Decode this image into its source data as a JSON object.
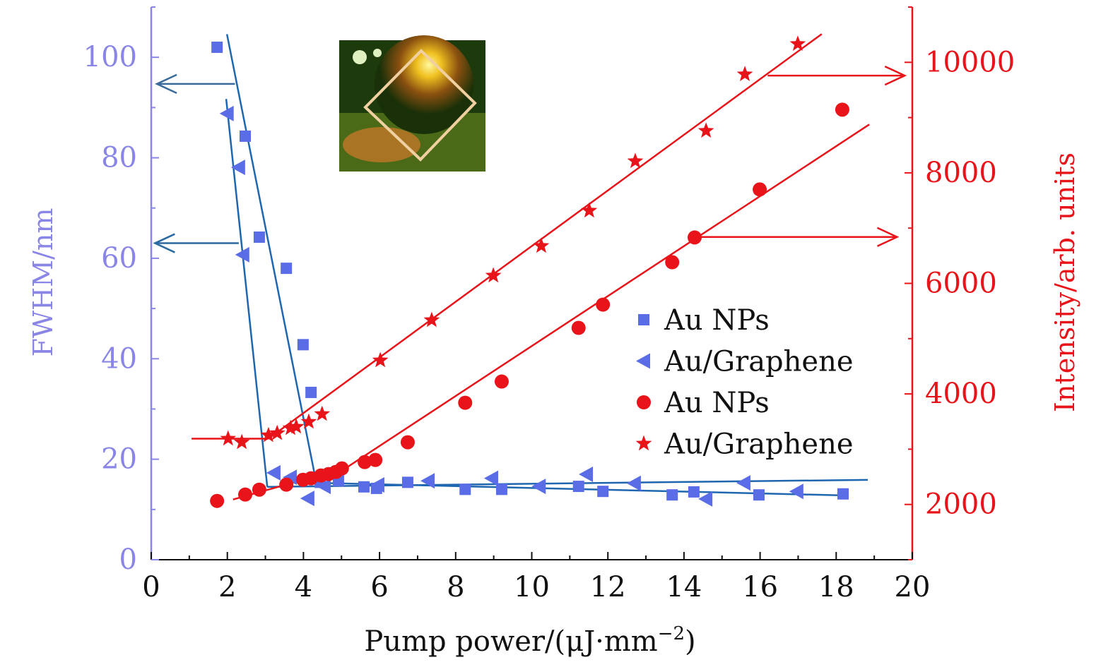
{
  "chart_data": {
    "type": "scatter",
    "xlabel": "Pump power/(μJ·mm",
    "xlabel_sup": "−2",
    "xlabel_close": ")",
    "ylabel_left": "FWHM/nm",
    "ylabel_right": "Intensity/arb. units",
    "xlim": [
      0,
      20
    ],
    "ylim_left": [
      0,
      110
    ],
    "ylim_right": [
      1000,
      11000
    ],
    "x_ticks": [
      "0",
      "2",
      "4",
      "6",
      "8",
      "10",
      "12",
      "14",
      "16",
      "18",
      "20"
    ],
    "y_left_ticks": [
      "0",
      "20",
      "40",
      "60",
      "80",
      "100"
    ],
    "y_right_ticks": [
      "2000",
      "4000",
      "6000",
      "8000",
      "10000"
    ],
    "grid": false,
    "legend_placement": "center-right",
    "colors": {
      "blue_marker": "#5a6ce6",
      "blue_line": "#1f66b0",
      "red": "#e8141a",
      "left_axis": "#8a86e6"
    },
    "series": [
      {
        "name": "Au NPs",
        "axis": "left",
        "marker": "square",
        "color": "#5a6ce6",
        "points": [
          [
            1.73,
            102
          ],
          [
            2.47,
            84.3
          ],
          [
            2.84,
            64.2
          ],
          [
            3.55,
            58
          ],
          [
            3.99,
            42.8
          ],
          [
            4.2,
            33.3
          ],
          [
            4.44,
            15.4
          ],
          [
            4.92,
            15.7
          ],
          [
            5.59,
            14.5
          ],
          [
            5.92,
            14.2
          ],
          [
            6.74,
            15.4
          ],
          [
            8.25,
            14
          ],
          [
            9.21,
            14
          ],
          [
            11.23,
            14.6
          ],
          [
            11.87,
            13.6
          ],
          [
            13.69,
            12.9
          ],
          [
            14.26,
            13.5
          ],
          [
            15.97,
            12.9
          ],
          [
            18.18,
            13.1
          ]
        ],
        "fit": [
          [
            [
              1.99,
              104.6
            ],
            [
              4.36,
              14.5
            ]
          ],
          [
            [
              4.36,
              15.3
            ],
            [
              18.2,
              12.8
            ]
          ]
        ]
      },
      {
        "name": "Au/Graphene",
        "axis": "left",
        "marker": "triangle-left",
        "color": "#5a6ce6",
        "points": [
          [
            2.0,
            88.8
          ],
          [
            2.3,
            78.1
          ],
          [
            2.41,
            60.7
          ],
          [
            3.23,
            17.3
          ],
          [
            3.66,
            16.4
          ],
          [
            4.12,
            12.2
          ],
          [
            4.55,
            14.6
          ],
          [
            5.96,
            14.9
          ],
          [
            7.28,
            15.7
          ],
          [
            8.95,
            16.2
          ],
          [
            10.2,
            14.6
          ],
          [
            11.44,
            17
          ],
          [
            12.7,
            15.2
          ],
          [
            14.58,
            12.1
          ],
          [
            15.58,
            15.3
          ],
          [
            16.97,
            13.6
          ]
        ],
        "fit": [
          [
            [
              1.97,
              91.7
            ],
            [
              3.05,
              14.5
            ]
          ],
          [
            [
              3.05,
              14.5
            ],
            [
              18.83,
              15.9
            ]
          ]
        ]
      },
      {
        "name": "Au NPs",
        "axis": "right",
        "marker": "circle",
        "color": "#e8141a",
        "points": [
          [
            1.73,
            2064
          ],
          [
            2.47,
            2179
          ],
          [
            2.84,
            2268
          ],
          [
            3.55,
            2358
          ],
          [
            3.99,
            2447
          ],
          [
            4.2,
            2473
          ],
          [
            4.46,
            2524
          ],
          [
            4.66,
            2550
          ],
          [
            4.85,
            2588
          ],
          [
            5.01,
            2652
          ],
          [
            5.61,
            2767
          ],
          [
            5.89,
            2805
          ],
          [
            6.74,
            3125
          ],
          [
            8.25,
            3840
          ],
          [
            9.21,
            4224
          ],
          [
            11.23,
            5195
          ],
          [
            11.87,
            5616
          ],
          [
            13.69,
            6383
          ],
          [
            14.28,
            6831
          ],
          [
            15.99,
            7700
          ],
          [
            18.16,
            9144
          ]
        ],
        "fit": [
          [
            [
              2.15,
              2090
            ],
            [
              5.13,
              2665
            ]
          ],
          [
            [
              5.13,
              2665
            ],
            [
              18.87,
              8876
            ]
          ]
        ]
      },
      {
        "name": "Au/Graphene",
        "axis": "right",
        "marker": "star",
        "color": "#e8141a",
        "points": [
          [
            2.02,
            3190
          ],
          [
            2.38,
            3125
          ],
          [
            3.08,
            3252
          ],
          [
            3.31,
            3290
          ],
          [
            3.66,
            3380
          ],
          [
            3.81,
            3406
          ],
          [
            4.14,
            3495
          ],
          [
            4.49,
            3636
          ],
          [
            6.02,
            4607
          ],
          [
            7.37,
            5335
          ],
          [
            8.99,
            6141
          ],
          [
            10.25,
            6677
          ],
          [
            11.51,
            7316
          ],
          [
            12.72,
            8211
          ],
          [
            14.58,
            8760
          ],
          [
            15.6,
            9783
          ],
          [
            16.99,
            10332
          ]
        ],
        "fit": [
          [
            [
              1.06,
              3190
            ],
            [
              3.08,
              3190
            ]
          ],
          [
            [
              3.08,
              3190
            ],
            [
              17.62,
              10512
            ]
          ]
        ]
      }
    ],
    "annotations": [
      {
        "type": "arrow-left",
        "axis": "left",
        "y": 94.7,
        "x_from": 2.2,
        "x_to": 0.15,
        "color": "#3a6a9a"
      },
      {
        "type": "arrow-left",
        "axis": "left",
        "y": 63,
        "x_from": 2.3,
        "x_to": 0.1,
        "color": "#2a6aa0"
      },
      {
        "type": "arrow-right",
        "axis": "right",
        "y": 9760,
        "x_from": 16.2,
        "x_to": 19.8,
        "color": "#e8141a"
      },
      {
        "type": "arrow-right",
        "axis": "right",
        "y": 6840,
        "x_from": 14.4,
        "x_to": 19.6,
        "color": "#e8141a"
      }
    ],
    "inset": "photo of glowing sample"
  }
}
